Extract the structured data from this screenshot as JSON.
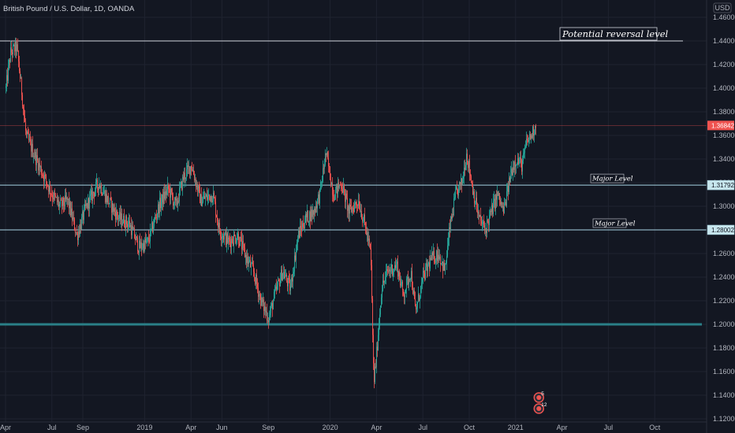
{
  "header": {
    "title": "British Pound / U.S. Dollar, 1D, OANDA",
    "currency": "USD"
  },
  "colors": {
    "background": "#131722",
    "grid": "#1f2330",
    "up": "#26a69a",
    "down": "#ef5350",
    "reversal_line": "#d1d4dc",
    "major_line": "#a9d6e5",
    "support_line": "#2a7f87",
    "price_line": "#ef5350"
  },
  "chart_data": {
    "type": "candlestick",
    "y_axis": {
      "ticks": [
        "1.46000",
        "1.44000",
        "1.42000",
        "1.40000",
        "1.38000",
        "1.36000",
        "1.34000",
        "1.32000",
        "1.30000",
        "1.28000",
        "1.26000",
        "1.24000",
        "1.22000",
        "1.20000",
        "1.18000",
        "1.16000",
        "1.14000",
        "1.12000"
      ],
      "range": [
        1.11,
        1.47
      ]
    },
    "x_axis": {
      "ticks": [
        {
          "label": "Apr",
          "t": 0
        },
        {
          "label": "Jul",
          "t": 3
        },
        {
          "label": "Sep",
          "t": 5
        },
        {
          "label": "2019",
          "t": 9
        },
        {
          "label": "Apr",
          "t": 12
        },
        {
          "label": "Jun",
          "t": 14
        },
        {
          "label": "Sep",
          "t": 17
        },
        {
          "label": "2020",
          "t": 21
        },
        {
          "label": "Apr",
          "t": 24
        },
        {
          "label": "Jul",
          "t": 27
        },
        {
          "label": "Oct",
          "t": 30
        },
        {
          "label": "2021",
          "t": 33
        },
        {
          "label": "Apr",
          "t": 36
        },
        {
          "label": "Jul",
          "t": 39
        },
        {
          "label": "Oct",
          "t": 42
        }
      ],
      "range": [
        0,
        47
      ]
    },
    "price_anchors": [
      [
        0,
        1.4
      ],
      [
        0.3,
        1.43
      ],
      [
        0.7,
        1.435
      ],
      [
        1.0,
        1.4
      ],
      [
        1.3,
        1.36
      ],
      [
        1.8,
        1.345
      ],
      [
        2.3,
        1.33
      ],
      [
        3.0,
        1.31
      ],
      [
        3.5,
        1.3
      ],
      [
        4.0,
        1.305
      ],
      [
        4.6,
        1.275
      ],
      [
        5.2,
        1.3
      ],
      [
        6.0,
        1.32
      ],
      [
        6.6,
        1.305
      ],
      [
        7.3,
        1.29
      ],
      [
        8.0,
        1.285
      ],
      [
        8.6,
        1.265
      ],
      [
        9.2,
        1.27
      ],
      [
        9.9,
        1.3
      ],
      [
        10.5,
        1.315
      ],
      [
        11.0,
        1.3
      ],
      [
        11.5,
        1.325
      ],
      [
        12.0,
        1.335
      ],
      [
        12.6,
        1.305
      ],
      [
        13.4,
        1.31
      ],
      [
        13.8,
        1.28
      ],
      [
        14.4,
        1.27
      ],
      [
        15.0,
        1.275
      ],
      [
        15.6,
        1.255
      ],
      [
        16.0,
        1.245
      ],
      [
        16.5,
        1.22
      ],
      [
        17.0,
        1.205
      ],
      [
        17.4,
        1.225
      ],
      [
        17.9,
        1.245
      ],
      [
        18.4,
        1.23
      ],
      [
        18.9,
        1.275
      ],
      [
        19.4,
        1.29
      ],
      [
        19.9,
        1.295
      ],
      [
        20.3,
        1.31
      ],
      [
        20.7,
        1.345
      ],
      [
        21.2,
        1.31
      ],
      [
        21.7,
        1.32
      ],
      [
        22.2,
        1.295
      ],
      [
        22.8,
        1.305
      ],
      [
        23.3,
        1.28
      ],
      [
        23.6,
        1.26
      ],
      [
        23.8,
        1.15
      ],
      [
        23.95,
        1.17
      ],
      [
        24.3,
        1.23
      ],
      [
        24.7,
        1.245
      ],
      [
        25.3,
        1.25
      ],
      [
        25.7,
        1.225
      ],
      [
        26.2,
        1.245
      ],
      [
        26.5,
        1.21
      ],
      [
        27.0,
        1.24
      ],
      [
        27.5,
        1.255
      ],
      [
        28.0,
        1.26
      ],
      [
        28.4,
        1.245
      ],
      [
        28.7,
        1.28
      ],
      [
        29.1,
        1.31
      ],
      [
        29.5,
        1.32
      ],
      [
        29.8,
        1.345
      ],
      [
        30.2,
        1.315
      ],
      [
        30.6,
        1.29
      ],
      [
        31.0,
        1.28
      ],
      [
        31.4,
        1.295
      ],
      [
        31.8,
        1.31
      ],
      [
        32.2,
        1.295
      ],
      [
        32.7,
        1.33
      ],
      [
        33.0,
        1.34
      ],
      [
        33.4,
        1.335
      ],
      [
        33.7,
        1.355
      ],
      [
        34.0,
        1.36
      ],
      [
        34.3,
        1.37
      ]
    ],
    "last_price": "1.36842",
    "horizontal_levels": [
      {
        "price": 1.44,
        "label": "Potential reversal level",
        "style": "reversal"
      },
      {
        "price": 1.31792,
        "label": "Major Level",
        "price_label": "1.31792",
        "style": "major"
      },
      {
        "price": 1.28002,
        "label": "Major Level",
        "price_label": "1.28002",
        "style": "major"
      },
      {
        "price": 1.2,
        "label": "",
        "style": "support"
      }
    ],
    "event_markers": [
      {
        "label": "5",
        "t": 34.3
      },
      {
        "label": "12",
        "t": 34.3
      }
    ]
  }
}
